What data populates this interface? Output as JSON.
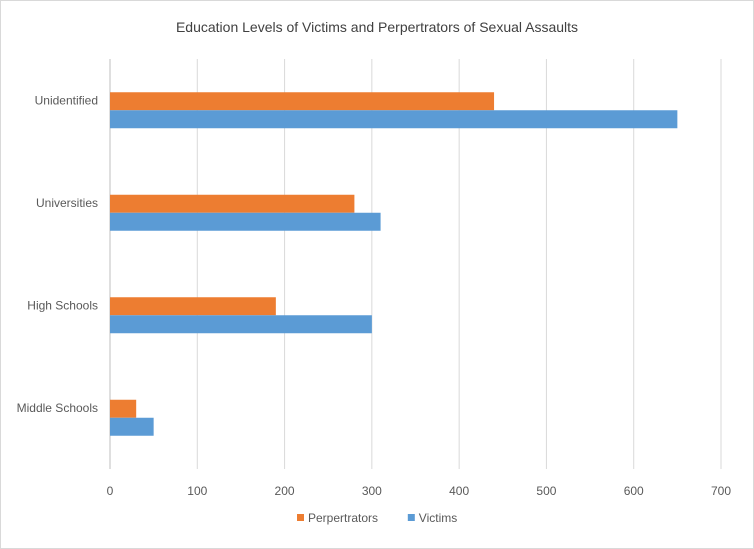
{
  "chart_data": {
    "type": "bar",
    "orientation": "horizontal",
    "title": "Education Levels of Victims and Perpertrators of Sexual Assaults",
    "xlabel": "",
    "ylabel": "",
    "categories": [
      "Unidentified",
      "Universities",
      "High Schools",
      "Middle Schools"
    ],
    "series": [
      {
        "name": "Perpertrators",
        "values": [
          440,
          280,
          190,
          30
        ],
        "color": "#ED7D31"
      },
      {
        "name": "Victims",
        "values": [
          650,
          310,
          300,
          50
        ],
        "color": "#5B9BD5"
      }
    ],
    "xlim": [
      0,
      700
    ],
    "x_ticks": [
      0,
      100,
      200,
      300,
      400,
      500,
      600,
      700
    ],
    "grid": "vertical",
    "legend": "bottom"
  }
}
